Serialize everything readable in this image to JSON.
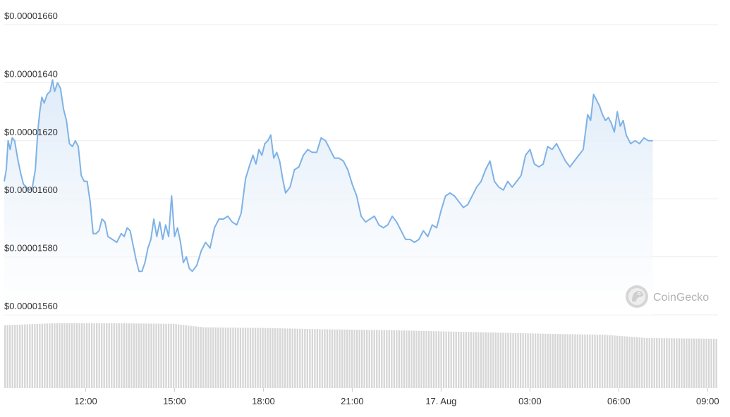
{
  "chart_data": {
    "type": "area",
    "colors": {
      "line": "#7fb2e5",
      "fill_top": "#dbe9f8",
      "fill_bottom": "#ffffff",
      "volume": "#d6d6d6",
      "grid": "#ececec"
    },
    "y_ticks": [
      "$0.00001560",
      "$0.00001580",
      "$0.00001600",
      "$0.00001620",
      "$0.00001640",
      "$0.00001660"
    ],
    "ylim": [
      1.56e-05,
      1.66e-05
    ],
    "x_ticks": [
      {
        "label": "12:00",
        "t": 2.0
      },
      {
        "label": "15:00",
        "t": 5.0
      },
      {
        "label": "18:00",
        "t": 8.0
      },
      {
        "label": "21:00",
        "t": 11.0
      },
      {
        "label": "17. Aug",
        "t": 14.0
      },
      {
        "label": "03:00",
        "t": 17.0
      },
      {
        "label": "06:00",
        "t": 20.0
      },
      {
        "label": "09:00",
        "t": 23.0
      }
    ],
    "x_range_hours": [
      -0.75,
      23.35
    ],
    "price_points": [
      [
        -0.75,
        1.606e-05
      ],
      [
        -0.68,
        1.61e-05
      ],
      [
        -0.62,
        1.62e-05
      ],
      [
        -0.55,
        1.617e-05
      ],
      [
        -0.48,
        1.621e-05
      ],
      [
        -0.4,
        1.62e-05
      ],
      [
        -0.3,
        1.614e-05
      ],
      [
        -0.2,
        1.609e-05
      ],
      [
        -0.1,
        1.605e-05
      ],
      [
        0.0,
        1.604e-05
      ],
      [
        0.1,
        1.603e-05
      ],
      [
        0.2,
        1.604e-05
      ],
      [
        0.3,
        1.61e-05
      ],
      [
        0.38,
        1.623e-05
      ],
      [
        0.45,
        1.63e-05
      ],
      [
        0.52,
        1.635e-05
      ],
      [
        0.6,
        1.633e-05
      ],
      [
        0.7,
        1.636e-05
      ],
      [
        0.8,
        1.637e-05
      ],
      [
        0.88,
        1.641e-05
      ],
      [
        0.95,
        1.637e-05
      ],
      [
        1.05,
        1.64e-05
      ],
      [
        1.15,
        1.638e-05
      ],
      [
        1.25,
        1.631e-05
      ],
      [
        1.35,
        1.627e-05
      ],
      [
        1.45,
        1.619e-05
      ],
      [
        1.55,
        1.618e-05
      ],
      [
        1.65,
        1.62e-05
      ],
      [
        1.75,
        1.618e-05
      ],
      [
        1.85,
        1.608e-05
      ],
      [
        1.95,
        1.606e-05
      ],
      [
        2.05,
        1.606e-05
      ],
      [
        2.15,
        1.599e-05
      ],
      [
        2.25,
        1.588e-05
      ],
      [
        2.35,
        1.588e-05
      ],
      [
        2.45,
        1.589e-05
      ],
      [
        2.55,
        1.593e-05
      ],
      [
        2.65,
        1.592e-05
      ],
      [
        2.75,
        1.587e-05
      ],
      [
        2.9,
        1.586e-05
      ],
      [
        3.05,
        1.585e-05
      ],
      [
        3.2,
        1.588e-05
      ],
      [
        3.3,
        1.587e-05
      ],
      [
        3.4,
        1.59e-05
      ],
      [
        3.5,
        1.589e-05
      ],
      [
        3.6,
        1.584e-05
      ],
      [
        3.7,
        1.579e-05
      ],
      [
        3.8,
        1.575e-05
      ],
      [
        3.9,
        1.575e-05
      ],
      [
        4.0,
        1.578e-05
      ],
      [
        4.1,
        1.583e-05
      ],
      [
        4.2,
        1.586e-05
      ],
      [
        4.3,
        1.593e-05
      ],
      [
        4.4,
        1.587e-05
      ],
      [
        4.5,
        1.592e-05
      ],
      [
        4.6,
        1.586e-05
      ],
      [
        4.7,
        1.591e-05
      ],
      [
        4.8,
        1.587e-05
      ],
      [
        4.9,
        1.601e-05
      ],
      [
        5.0,
        1.587e-05
      ],
      [
        5.1,
        1.59e-05
      ],
      [
        5.2,
        1.585e-05
      ],
      [
        5.3,
        1.578e-05
      ],
      [
        5.4,
        1.58e-05
      ],
      [
        5.5,
        1.576e-05
      ],
      [
        5.6,
        1.575e-05
      ],
      [
        5.75,
        1.577e-05
      ],
      [
        5.9,
        1.582e-05
      ],
      [
        6.05,
        1.585e-05
      ],
      [
        6.2,
        1.583e-05
      ],
      [
        6.35,
        1.59e-05
      ],
      [
        6.5,
        1.593e-05
      ],
      [
        6.65,
        1.593e-05
      ],
      [
        6.8,
        1.594e-05
      ],
      [
        6.95,
        1.592e-05
      ],
      [
        7.1,
        1.591e-05
      ],
      [
        7.25,
        1.595e-05
      ],
      [
        7.4,
        1.607e-05
      ],
      [
        7.55,
        1.612e-05
      ],
      [
        7.65,
        1.615e-05
      ],
      [
        7.75,
        1.612e-05
      ],
      [
        7.85,
        1.617e-05
      ],
      [
        7.95,
        1.615e-05
      ],
      [
        8.05,
        1.619e-05
      ],
      [
        8.15,
        1.62e-05
      ],
      [
        8.25,
        1.622e-05
      ],
      [
        8.35,
        1.614e-05
      ],
      [
        8.45,
        1.616e-05
      ],
      [
        8.55,
        1.613e-05
      ],
      [
        8.65,
        1.607e-05
      ],
      [
        8.75,
        1.602e-05
      ],
      [
        8.9,
        1.604e-05
      ],
      [
        9.05,
        1.61e-05
      ],
      [
        9.2,
        1.611e-05
      ],
      [
        9.35,
        1.615e-05
      ],
      [
        9.5,
        1.617e-05
      ],
      [
        9.65,
        1.616e-05
      ],
      [
        9.8,
        1.616e-05
      ],
      [
        9.95,
        1.621e-05
      ],
      [
        10.1,
        1.62e-05
      ],
      [
        10.25,
        1.617e-05
      ],
      [
        10.4,
        1.614e-05
      ],
      [
        10.55,
        1.614e-05
      ],
      [
        10.7,
        1.613e-05
      ],
      [
        10.85,
        1.61e-05
      ],
      [
        11.0,
        1.605e-05
      ],
      [
        11.15,
        1.601e-05
      ],
      [
        11.3,
        1.594e-05
      ],
      [
        11.45,
        1.592e-05
      ],
      [
        11.6,
        1.593e-05
      ],
      [
        11.75,
        1.594e-05
      ],
      [
        11.9,
        1.591e-05
      ],
      [
        12.05,
        1.59e-05
      ],
      [
        12.2,
        1.591e-05
      ],
      [
        12.35,
        1.594e-05
      ],
      [
        12.5,
        1.592e-05
      ],
      [
        12.65,
        1.589e-05
      ],
      [
        12.8,
        1.586e-05
      ],
      [
        12.95,
        1.586e-05
      ],
      [
        13.1,
        1.585e-05
      ],
      [
        13.25,
        1.586e-05
      ],
      [
        13.4,
        1.589e-05
      ],
      [
        13.55,
        1.587e-05
      ],
      [
        13.7,
        1.591e-05
      ],
      [
        13.85,
        1.59e-05
      ],
      [
        14.0,
        1.596e-05
      ],
      [
        14.15,
        1.601e-05
      ],
      [
        14.3,
        1.602e-05
      ],
      [
        14.45,
        1.601e-05
      ],
      [
        14.6,
        1.599e-05
      ],
      [
        14.75,
        1.597e-05
      ],
      [
        14.9,
        1.598e-05
      ],
      [
        15.05,
        1.601e-05
      ],
      [
        15.2,
        1.604e-05
      ],
      [
        15.35,
        1.606e-05
      ],
      [
        15.5,
        1.61e-05
      ],
      [
        15.65,
        1.613e-05
      ],
      [
        15.8,
        1.606e-05
      ],
      [
        15.95,
        1.604e-05
      ],
      [
        16.1,
        1.603e-05
      ],
      [
        16.25,
        1.606e-05
      ],
      [
        16.4,
        1.604e-05
      ],
      [
        16.55,
        1.606e-05
      ],
      [
        16.7,
        1.608e-05
      ],
      [
        16.85,
        1.615e-05
      ],
      [
        17.0,
        1.617e-05
      ],
      [
        17.15,
        1.612e-05
      ],
      [
        17.3,
        1.611e-05
      ],
      [
        17.45,
        1.612e-05
      ],
      [
        17.6,
        1.618e-05
      ],
      [
        17.75,
        1.617e-05
      ],
      [
        17.9,
        1.619e-05
      ],
      [
        18.05,
        1.616e-05
      ],
      [
        18.2,
        1.613e-05
      ],
      [
        18.35,
        1.611e-05
      ],
      [
        18.5,
        1.613e-05
      ],
      [
        18.65,
        1.615e-05
      ],
      [
        18.8,
        1.617e-05
      ],
      [
        18.95,
        1.629e-05
      ],
      [
        19.05,
        1.627e-05
      ],
      [
        19.15,
        1.636e-05
      ],
      [
        19.25,
        1.634e-05
      ],
      [
        19.35,
        1.632e-05
      ],
      [
        19.45,
        1.629e-05
      ],
      [
        19.55,
        1.627e-05
      ],
      [
        19.65,
        1.628e-05
      ],
      [
        19.75,
        1.626e-05
      ],
      [
        19.85,
        1.623e-05
      ],
      [
        19.95,
        1.63e-05
      ],
      [
        20.05,
        1.625e-05
      ],
      [
        20.15,
        1.627e-05
      ],
      [
        20.25,
        1.622e-05
      ],
      [
        20.4,
        1.619e-05
      ],
      [
        20.55,
        1.62e-05
      ],
      [
        20.7,
        1.619e-05
      ],
      [
        20.85,
        1.621e-05
      ],
      [
        21.0,
        1.62e-05
      ],
      [
        21.15,
        1.62e-05
      ]
    ],
    "volume_points": [
      [
        -0.75,
        0.93
      ],
      [
        1.0,
        0.96
      ],
      [
        3.0,
        0.96
      ],
      [
        5.0,
        0.95
      ],
      [
        6.0,
        0.9
      ],
      [
        8.0,
        0.89
      ],
      [
        10.0,
        0.87
      ],
      [
        12.0,
        0.86
      ],
      [
        14.0,
        0.84
      ],
      [
        16.0,
        0.82
      ],
      [
        18.0,
        0.8
      ],
      [
        19.5,
        0.79
      ],
      [
        21.0,
        0.74
      ],
      [
        23.35,
        0.73
      ]
    ]
  },
  "watermark": {
    "text": "CoinGecko",
    "icon": "gecko-logo-icon"
  }
}
